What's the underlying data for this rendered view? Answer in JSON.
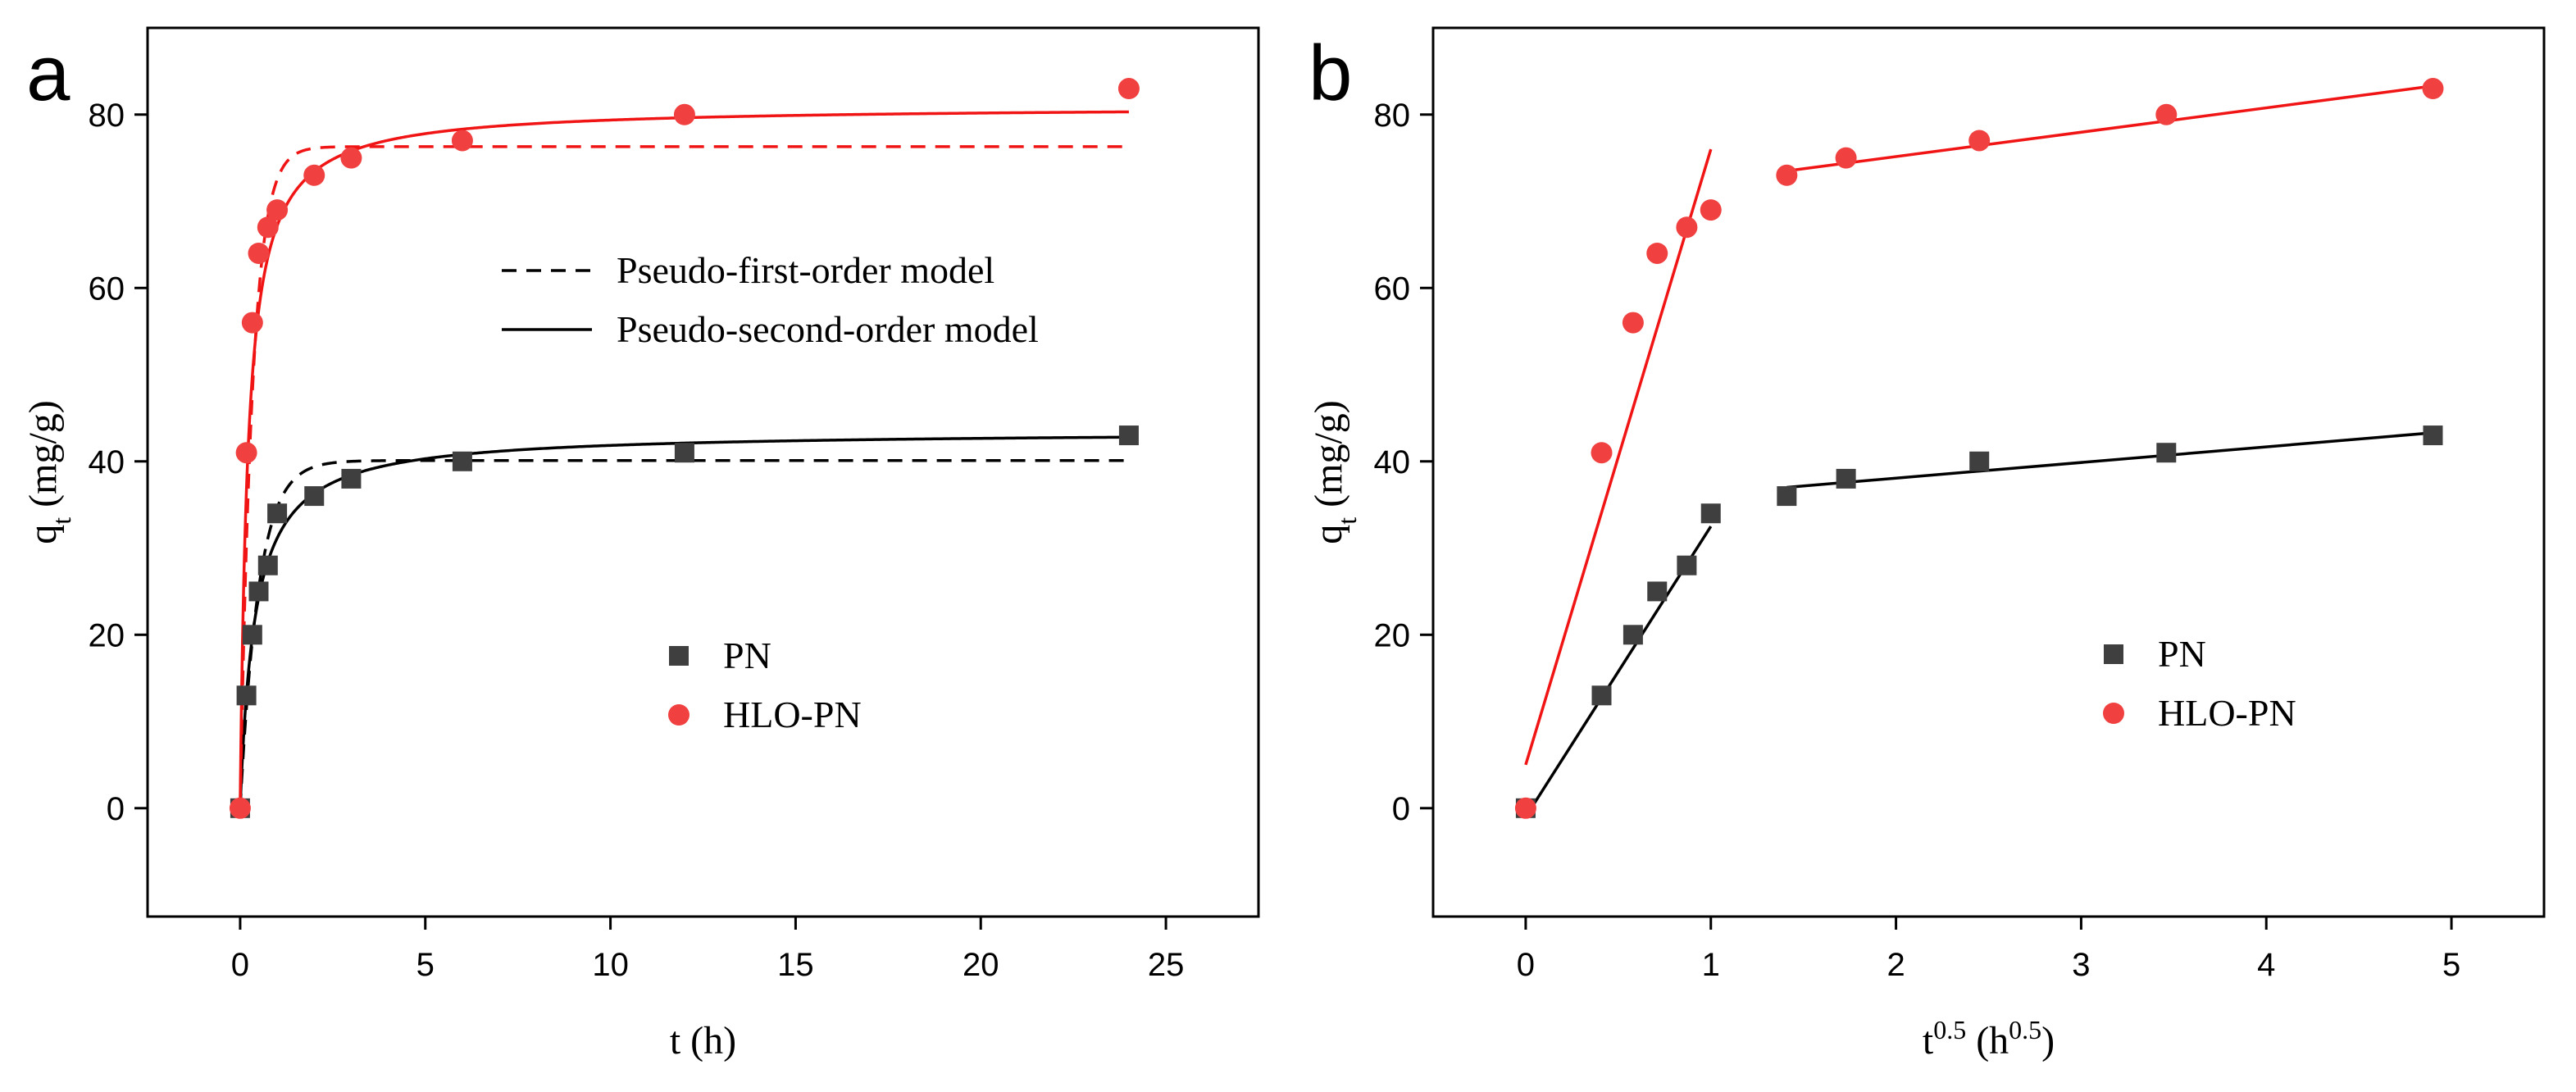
{
  "chart_data": [
    {
      "panel_label": "a",
      "type": "scatter",
      "title": "",
      "xlabel": {
        "main": "t (h)"
      },
      "ylabel": {
        "main": "q",
        "sub": "t",
        "rest": " (mg/g)"
      },
      "xlim": [
        -2.5,
        27.5
      ],
      "ylim": [
        -12.5,
        90
      ],
      "xticks": [
        0,
        5,
        10,
        15,
        20,
        25
      ],
      "yticks": [
        0,
        20,
        40,
        60,
        80
      ],
      "grid": false,
      "series": [
        {
          "name": "PN",
          "marker": "square",
          "color": "#3f3f3f",
          "x": [
            0,
            0.17,
            0.33,
            0.5,
            0.75,
            1,
            2,
            3,
            6,
            12,
            24
          ],
          "y": [
            0,
            13,
            20,
            25,
            28,
            34,
            36,
            38,
            40,
            41,
            43
          ]
        },
        {
          "name": "HLO-PN",
          "marker": "circle",
          "color": "#f04040",
          "x": [
            0,
            0.17,
            0.33,
            0.5,
            0.75,
            1,
            2,
            3,
            6,
            12,
            24
          ],
          "y": [
            0,
            41,
            56,
            64,
            67,
            69,
            73,
            75,
            77,
            80,
            83
          ]
        }
      ],
      "fits": [
        {
          "name": "PN pseudo-first-order",
          "model": "pfo",
          "color": "#000000",
          "dash": true,
          "qe": 40.1,
          "k": 2.0,
          "x_range": [
            0,
            24
          ]
        },
        {
          "name": "PN pseudo-second-order",
          "model": "pso",
          "color": "#000000",
          "dash": false,
          "qe": 43.5,
          "k": 0.058,
          "x_range": [
            0,
            24
          ]
        },
        {
          "name": "HLO-PN pseudo-first-order",
          "model": "pfo",
          "color": "#f01414",
          "dash": true,
          "qe": 76.3,
          "k": 3.0,
          "x_range": [
            0,
            24
          ]
        },
        {
          "name": "HLO-PN pseudo-second-order",
          "model": "pso",
          "color": "#f01414",
          "dash": false,
          "qe": 81.0,
          "k": 0.06,
          "x_range": [
            0,
            24
          ]
        }
      ],
      "model_legend": [
        {
          "label": "Pseudo-first-order model",
          "dash": true
        },
        {
          "label": "Pseudo-second-order model",
          "dash": false
        }
      ],
      "legend_position": "center-right"
    },
    {
      "panel_label": "b",
      "type": "scatter",
      "title": "",
      "xlabel": {
        "main": "t",
        "sup": "0.5",
        "rest": " (h",
        "sup2": "0.5",
        "end": ")"
      },
      "ylabel": {
        "main": "q",
        "sub": "t",
        "rest": " (mg/g)"
      },
      "xlim": [
        -0.5,
        5.5
      ],
      "ylim": [
        -12.5,
        90
      ],
      "xticks": [
        0,
        1,
        2,
        3,
        4,
        5
      ],
      "yticks": [
        0,
        20,
        40,
        60,
        80
      ],
      "grid": false,
      "series": [
        {
          "name": "PN",
          "marker": "square",
          "color": "#3f3f3f",
          "x": [
            0,
            0.41,
            0.58,
            0.71,
            0.87,
            1,
            1.41,
            1.73,
            2.45,
            3.46,
            4.9
          ],
          "y": [
            0,
            13,
            20,
            25,
            28,
            34,
            36,
            38,
            40,
            41,
            43
          ]
        },
        {
          "name": "HLO-PN",
          "marker": "circle",
          "color": "#f04040",
          "x": [
            0,
            0.41,
            0.58,
            0.71,
            0.87,
            1,
            1.41,
            1.73,
            2.45,
            3.46,
            4.9
          ],
          "y": [
            0,
            41,
            56,
            64,
            67,
            69,
            73,
            75,
            77,
            80,
            83
          ]
        }
      ],
      "fits": [
        {
          "name": "PN stage 1",
          "model": "linear",
          "color": "#000000",
          "x": [
            0,
            1
          ],
          "y": [
            -1,
            32.5
          ]
        },
        {
          "name": "PN stage 2",
          "model": "linear",
          "color": "#000000",
          "x": [
            1.41,
            4.9
          ],
          "y": [
            37,
            43.3
          ]
        },
        {
          "name": "HLO-PN stage 1",
          "model": "linear",
          "color": "#f01414",
          "x": [
            0,
            1
          ],
          "y": [
            5,
            76
          ]
        },
        {
          "name": "HLO-PN stage 2",
          "model": "linear",
          "color": "#f01414",
          "x": [
            1.41,
            4.9
          ],
          "y": [
            73.5,
            83.3
          ]
        }
      ],
      "legend_position": "center-right"
    }
  ]
}
